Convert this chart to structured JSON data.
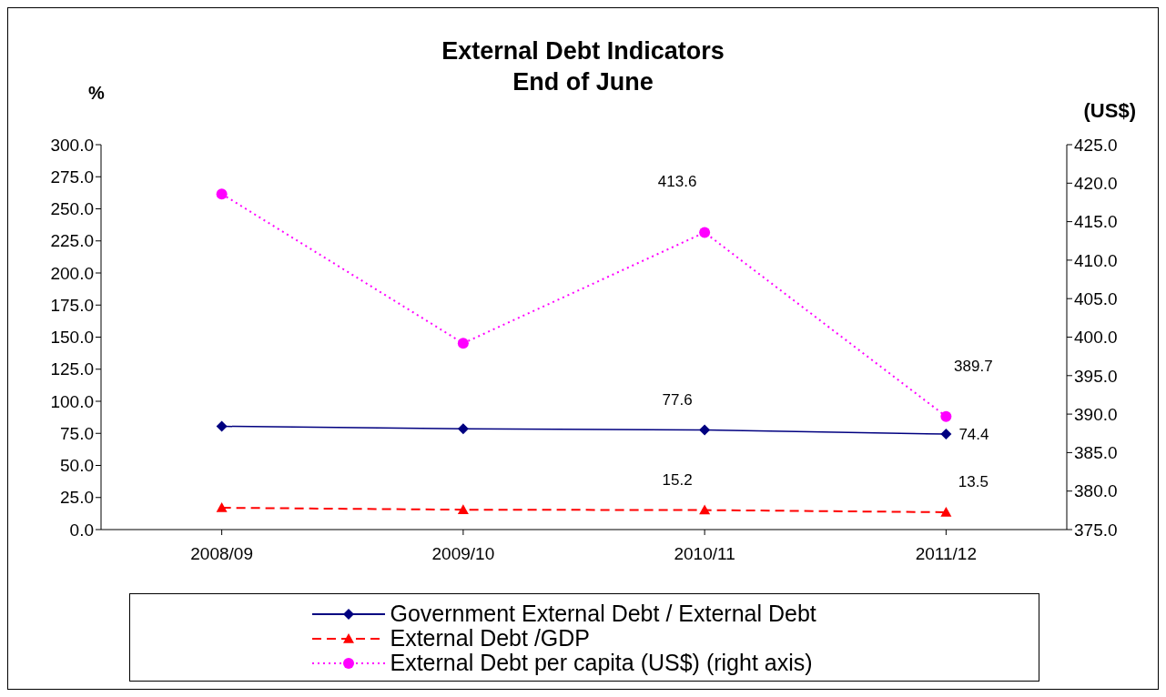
{
  "chart_data": {
    "type": "line",
    "title": "External Debt Indicators",
    "subtitle": "End of June",
    "ylabel": "%",
    "y2label": "(US$)",
    "categories": [
      "2008/09",
      "2009/10",
      "2010/11",
      "2011/12"
    ],
    "series": [
      {
        "name": "Government External Debt / External Debt",
        "color": "#000080",
        "values": [
          80.5,
          78.5,
          77.6,
          74.4
        ],
        "value_labels": [
          null,
          null,
          "77.6",
          "74.4"
        ],
        "marker": "diamond",
        "line_style": "solid"
      },
      {
        "name": "External Debt /GDP",
        "color": "#ff0000",
        "values": [
          17.0,
          15.5,
          15.2,
          13.5
        ],
        "value_labels": [
          null,
          null,
          "15.2",
          "13.5"
        ],
        "marker": "triangle",
        "line_style": "dashed"
      },
      {
        "name": "External Debt per capita (US$) (right axis)",
        "color": "#ff00ff",
        "values": [
          418.6,
          399.2,
          413.6,
          389.7
        ],
        "value_labels": [
          null,
          null,
          "413.6",
          "389.7"
        ],
        "marker": "circle",
        "line_style": "dotted",
        "axis": "y2"
      }
    ],
    "ylim": [
      0,
      300
    ],
    "yticks": [
      {
        "value": 0,
        "label": "0.0"
      },
      {
        "value": 25,
        "label": "25.0"
      },
      {
        "value": 50,
        "label": "50.0"
      },
      {
        "value": 75,
        "label": "75.0"
      },
      {
        "value": 100,
        "label": "100.0"
      },
      {
        "value": 125,
        "label": "125.0"
      },
      {
        "value": 150,
        "label": "150.0"
      },
      {
        "value": 175,
        "label": "175.0"
      },
      {
        "value": 200,
        "label": "200.0"
      },
      {
        "value": 225,
        "label": "225.0"
      },
      {
        "value": 250,
        "label": "250.0"
      },
      {
        "value": 275,
        "label": "275.0"
      },
      {
        "value": 300,
        "label": "300.0"
      }
    ],
    "y2lim": [
      375,
      425
    ],
    "y2ticks": [
      {
        "value": 375,
        "label": "375.0"
      },
      {
        "value": 380,
        "label": "380.0"
      },
      {
        "value": 385,
        "label": "385.0"
      },
      {
        "value": 390,
        "label": "390.0"
      },
      {
        "value": 395,
        "label": "395.0"
      },
      {
        "value": 400,
        "label": "400.0"
      },
      {
        "value": 405,
        "label": "405.0"
      },
      {
        "value": 410,
        "label": "410.0"
      },
      {
        "value": 415,
        "label": "415.0"
      },
      {
        "value": 420,
        "label": "420.0"
      },
      {
        "value": 425,
        "label": "425.0"
      }
    ],
    "legend": "bottom"
  }
}
